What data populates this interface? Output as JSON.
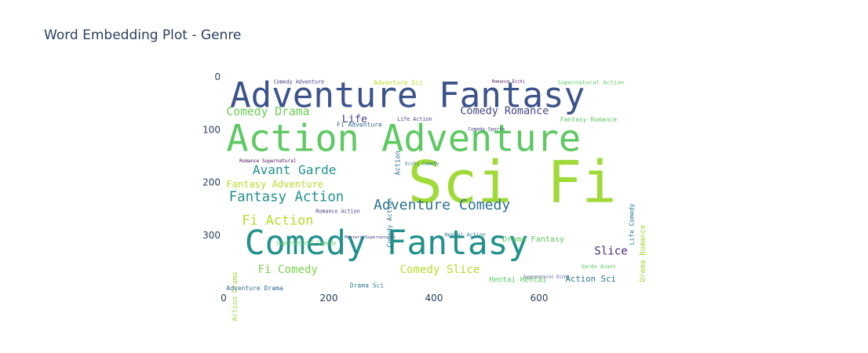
{
  "chart_data": {
    "type": "wordcloud",
    "title": "Word Embedding Plot - Genre",
    "xlabel": "",
    "ylabel": "",
    "x_ticks": [
      0,
      200,
      400,
      600
    ],
    "y_ticks": [
      0,
      100,
      200,
      300
    ],
    "xlim": [
      0,
      800
    ],
    "ylim": [
      400,
      0
    ],
    "grid": false,
    "words": [
      {
        "text": "Adventure Fantasy",
        "x": 12,
        "y": 5,
        "size": 66,
        "color": "#3b528b"
      },
      {
        "text": "Action Adventure",
        "x": 5,
        "y": 85,
        "size": 70,
        "color": "#5ec962"
      },
      {
        "text": "Sci Fi",
        "x": 350,
        "y": 150,
        "size": 110,
        "color": "#a0da39"
      },
      {
        "text": "Comedy Fantasy",
        "x": 40,
        "y": 285,
        "size": 64,
        "color": "#21918c"
      },
      {
        "text": "Comedy Drama",
        "x": 5,
        "y": 55,
        "size": 22,
        "color": "#6ece58"
      },
      {
        "text": "Life",
        "x": 225,
        "y": 70,
        "size": 20,
        "color": "#414487"
      },
      {
        "text": "Comedy Romance",
        "x": 450,
        "y": 55,
        "size": 20,
        "color": "#414487"
      },
      {
        "text": "Avant Garde",
        "x": 55,
        "y": 165,
        "size": 24,
        "color": "#21918c"
      },
      {
        "text": "Fantasy Adventure",
        "x": 5,
        "y": 195,
        "size": 18,
        "color": "#b5de2b"
      },
      {
        "text": "Fantasy Action",
        "x": 10,
        "y": 215,
        "size": 26,
        "color": "#21918c"
      },
      {
        "text": "Adventure Comedy",
        "x": 285,
        "y": 230,
        "size": 27,
        "color": "#2c728e"
      },
      {
        "text": "Fi Action",
        "x": 35,
        "y": 260,
        "size": 25,
        "color": "#b5de2b"
      },
      {
        "text": "Fi Comedy",
        "x": 65,
        "y": 355,
        "size": 21,
        "color": "#7ad151"
      },
      {
        "text": "Comedy Slice",
        "x": 335,
        "y": 355,
        "size": 21,
        "color": "#b5de2b"
      },
      {
        "text": "Slice",
        "x": 705,
        "y": 320,
        "size": 21,
        "color": "#482878"
      },
      {
        "text": "Drama Fantasy",
        "x": 530,
        "y": 300,
        "size": 15,
        "color": "#5ec962"
      },
      {
        "text": "Action Sci",
        "x": 650,
        "y": 375,
        "size": 16,
        "color": "#2a788e"
      },
      {
        "text": "Hentai Hentai",
        "x": 505,
        "y": 378,
        "size": 14,
        "color": "#5ec962"
      },
      {
        "text": "Drama Romance",
        "x": 790,
        "y": 280,
        "size": 14,
        "color": "#a0da39",
        "rotate": -90
      },
      {
        "text": "Life Comedy",
        "x": 770,
        "y": 240,
        "size": 12,
        "color": "#2a788e",
        "rotate": -90
      },
      {
        "text": "Action Drama",
        "x": 15,
        "y": 370,
        "size": 13,
        "color": "#a0da39",
        "rotate": -90
      },
      {
        "text": "Adventure Drama",
        "x": 5,
        "y": 395,
        "size": 12,
        "color": "#31688e"
      },
      {
        "text": "Drama Sci",
        "x": 240,
        "y": 390,
        "size": 12,
        "color": "#2a788e"
      },
      {
        "text": "Fantasy Romance",
        "x": 640,
        "y": 75,
        "size": 12,
        "color": "#5ec962"
      },
      {
        "text": "Supernatural Action",
        "x": 635,
        "y": 5,
        "size": 11,
        "color": "#5ec962"
      },
      {
        "text": "Adventure Sci",
        "x": 285,
        "y": 5,
        "size": 12,
        "color": "#b5de2b"
      },
      {
        "text": "Comedy Adventure",
        "x": 95,
        "y": 5,
        "size": 10,
        "color": "#414487"
      },
      {
        "text": "Romance Action",
        "x": 175,
        "y": 250,
        "size": 10,
        "color": "#414487"
      },
      {
        "text": "Supernatural Comedy",
        "x": 100,
        "y": 310,
        "size": 10,
        "color": "#5ec962"
      },
      {
        "text": "Ecchi Comedy",
        "x": 345,
        "y": 160,
        "size": 9,
        "color": "#2a788e"
      },
      {
        "text": "Mystery Supernatural",
        "x": 230,
        "y": 300,
        "size": 8,
        "color": "#414487"
      },
      {
        "text": "Hentai Action",
        "x": 420,
        "y": 295,
        "size": 10,
        "color": "#2a788e"
      },
      {
        "text": "Garde Avant",
        "x": 680,
        "y": 355,
        "size": 10,
        "color": "#5ec962"
      },
      {
        "text": "Supernatural Ecchi",
        "x": 570,
        "y": 375,
        "size": 8,
        "color": "#414487"
      },
      {
        "text": "Comedy Action",
        "x": 310,
        "y": 230,
        "size": 12,
        "color": "#2c728e",
        "rotate": -90
      },
      {
        "text": "Fi Adventure",
        "x": 215,
        "y": 85,
        "size": 12,
        "color": "#31688e"
      },
      {
        "text": "Life Action",
        "x": 330,
        "y": 75,
        "size": 10,
        "color": "#414487"
      },
      {
        "text": "Action",
        "x": 325,
        "y": 140,
        "size": 13,
        "color": "#2c728e",
        "rotate": -90
      },
      {
        "text": "Comedy Sports",
        "x": 465,
        "y": 95,
        "size": 9,
        "color": "#414487"
      },
      {
        "text": "Romance Supernatural",
        "x": 30,
        "y": 155,
        "size": 9,
        "color": "#440154"
      },
      {
        "text": "Romance Ecchi",
        "x": 510,
        "y": 5,
        "size": 8,
        "color": "#440154"
      }
    ]
  }
}
